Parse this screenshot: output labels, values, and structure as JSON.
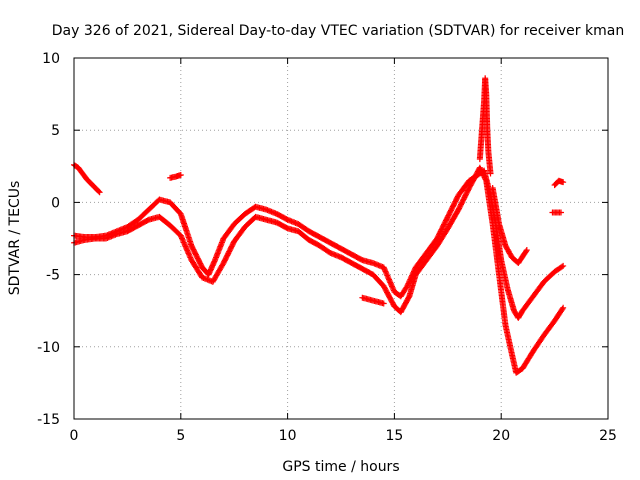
{
  "chart_data": {
    "type": "scatter",
    "title": "Day 326 of 2021, Sidereal Day-to-day VTEC variation (SDTVAR) for receiver kman",
    "xlabel": "GPS time / hours",
    "ylabel": "SDTVAR / TECUs",
    "xlim": [
      0,
      25
    ],
    "ylim": [
      -15,
      10
    ],
    "xticks": [
      0,
      5,
      10,
      15,
      20,
      25
    ],
    "yticks": [
      -15,
      -10,
      -5,
      0,
      5,
      10
    ],
    "grid": true,
    "marker": "+",
    "color": "#ff0000",
    "series": [
      {
        "name": "track-a",
        "x": [
          0.0,
          0.2,
          0.4,
          0.6,
          0.8,
          1.0,
          1.2
        ],
        "y": [
          2.6,
          2.4,
          2.0,
          1.6,
          1.3,
          1.0,
          0.7
        ]
      },
      {
        "name": "track-b",
        "x": [
          0.0,
          0.5,
          1.0,
          1.5,
          2.0,
          2.5,
          3.0,
          3.5,
          4.0,
          4.5,
          5.0,
          5.5,
          6.0,
          6.3,
          6.6,
          7.0,
          7.5,
          8.0,
          8.5,
          9.0,
          9.5,
          10.0,
          10.5,
          11.0,
          11.5,
          12.0,
          12.5,
          13.0,
          13.5,
          14.0,
          14.5,
          15.0,
          15.3,
          15.6,
          16.0,
          16.5,
          17.0,
          17.5,
          18.0,
          18.5,
          19.0,
          19.2,
          19.5,
          19.8,
          20.0,
          20.3,
          20.6,
          20.8,
          21.0,
          21.5,
          22.0,
          22.5,
          22.9
        ],
        "y": [
          -2.3,
          -2.4,
          -2.4,
          -2.3,
          -2.0,
          -1.7,
          -1.2,
          -0.5,
          0.2,
          0.0,
          -0.8,
          -3.0,
          -4.5,
          -5.0,
          -4.0,
          -2.5,
          -1.5,
          -0.8,
          -0.3,
          -0.5,
          -0.8,
          -1.2,
          -1.5,
          -2.0,
          -2.4,
          -2.8,
          -3.2,
          -3.6,
          -4.0,
          -4.2,
          -4.5,
          -6.2,
          -6.5,
          -5.8,
          -4.5,
          -3.5,
          -2.5,
          -1.0,
          0.5,
          1.5,
          2.0,
          2.2,
          0.5,
          -2.0,
          -4.0,
          -6.0,
          -7.5,
          -8.0,
          -7.5,
          -6.5,
          -5.5,
          -4.8,
          -4.4
        ]
      },
      {
        "name": "track-c",
        "x": [
          0.0,
          0.5,
          1.0,
          1.5,
          2.0,
          2.5,
          3.0,
          3.5,
          4.0,
          4.5,
          5.0,
          5.5,
          6.0,
          6.5,
          7.0,
          7.5,
          8.0,
          8.5,
          9.0,
          9.5,
          10.0,
          10.5,
          11.0,
          11.5,
          12.0,
          12.5,
          13.0,
          13.5,
          14.0,
          14.5,
          15.0,
          15.3,
          15.7,
          16.0,
          16.5,
          17.0,
          17.5,
          18.0,
          18.5,
          19.0,
          19.3,
          19.6,
          19.9,
          20.2,
          20.5,
          20.7,
          21.0,
          21.5,
          22.0,
          22.5,
          22.9
        ],
        "y": [
          -2.8,
          -2.6,
          -2.5,
          -2.5,
          -2.2,
          -2.0,
          -1.6,
          -1.2,
          -1.0,
          -1.6,
          -2.3,
          -4.0,
          -5.2,
          -5.5,
          -4.2,
          -2.7,
          -1.7,
          -1.0,
          -1.2,
          -1.4,
          -1.8,
          -2.0,
          -2.6,
          -3.0,
          -3.5,
          -3.8,
          -4.2,
          -4.6,
          -5.0,
          -5.8,
          -7.2,
          -7.6,
          -6.5,
          -5.0,
          -4.0,
          -3.0,
          -1.8,
          -0.5,
          1.0,
          2.4,
          1.5,
          -1.5,
          -5.0,
          -8.5,
          -10.5,
          -11.8,
          -11.5,
          -10.3,
          -9.2,
          -8.2,
          -7.3
        ]
      },
      {
        "name": "track-d",
        "x": [
          19.0,
          19.1,
          19.2,
          19.25,
          19.3,
          19.35,
          19.4,
          19.5
        ],
        "y": [
          3.0,
          5.0,
          7.0,
          8.6,
          7.5,
          5.0,
          3.5,
          2.0
        ]
      },
      {
        "name": "track-e",
        "x": [
          19.6,
          19.9,
          20.2,
          20.5,
          20.8,
          21.2
        ],
        "y": [
          1.0,
          -1.5,
          -3.0,
          -3.8,
          -4.2,
          -3.3
        ]
      },
      {
        "name": "track-f",
        "x": [
          4.5,
          4.8,
          5.0
        ],
        "y": [
          1.7,
          1.8,
          1.9
        ]
      },
      {
        "name": "track-g",
        "x": [
          13.5,
          14.0,
          14.5
        ],
        "y": [
          -6.6,
          -6.8,
          -7.0
        ]
      },
      {
        "name": "track-h",
        "x": [
          22.5,
          22.7,
          22.9
        ],
        "y": [
          1.2,
          1.5,
          1.4
        ]
      },
      {
        "name": "track-i",
        "x": [
          22.4,
          22.6,
          22.8
        ],
        "y": [
          -0.7,
          -0.7,
          -0.7
        ]
      }
    ]
  }
}
